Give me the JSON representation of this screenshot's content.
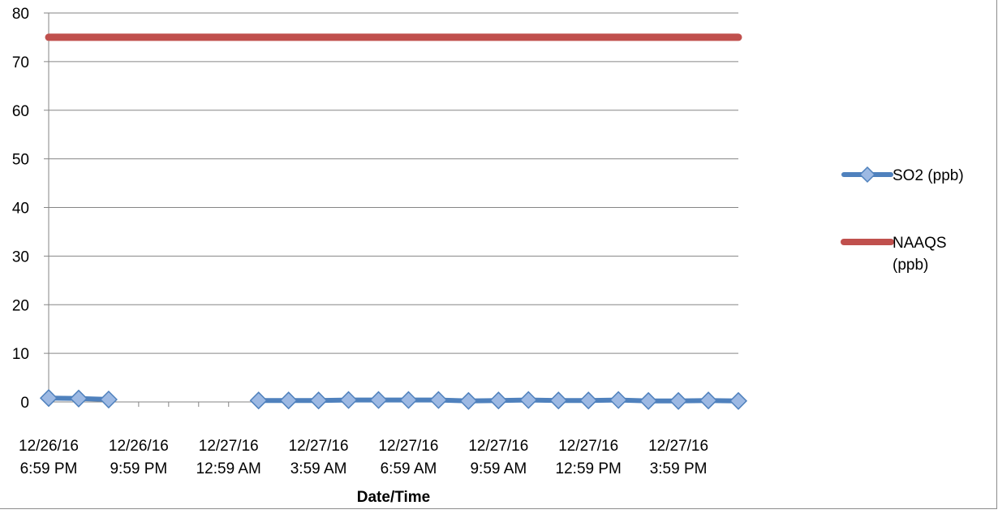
{
  "chart_data": {
    "type": "line",
    "xlabel": "Date/Time",
    "ylabel": "",
    "ylim": [
      0,
      80
    ],
    "yticks": [
      0,
      10,
      20,
      30,
      40,
      50,
      60,
      70,
      80
    ],
    "grid": true,
    "legend_position": "right",
    "x": [
      "12/26/16 6:59 PM",
      "12/26/16 7:59 PM",
      "12/26/16 8:59 PM",
      "12/26/16 9:59 PM",
      "12/26/16 10:59 PM",
      "12/26/16 11:59 PM",
      "12/27/16 12:59 AM",
      "12/27/16 1:59 AM",
      "12/27/16 2:59 AM",
      "12/27/16 3:59 AM",
      "12/27/16 4:59 AM",
      "12/27/16 5:59 AM",
      "12/27/16 6:59 AM",
      "12/27/16 7:59 AM",
      "12/27/16 8:59 AM",
      "12/27/16 9:59 AM",
      "12/27/16 10:59 AM",
      "12/27/16 11:59 AM",
      "12/27/16 12:59 PM",
      "12/27/16 1:59 PM",
      "12/27/16 2:59 PM",
      "12/27/16 3:59 PM",
      "12/27/16 4:59 PM",
      "12/27/16 5:59 PM"
    ],
    "x_tick_labels": [
      {
        "index": 0,
        "line1": "12/26/16",
        "line2": "6:59 PM"
      },
      {
        "index": 3,
        "line1": "12/26/16",
        "line2": "9:59 PM"
      },
      {
        "index": 6,
        "line1": "12/27/16",
        "line2": "12:59 AM"
      },
      {
        "index": 9,
        "line1": "12/27/16",
        "line2": "3:59 AM"
      },
      {
        "index": 12,
        "line1": "12/27/16",
        "line2": "6:59 AM"
      },
      {
        "index": 15,
        "line1": "12/27/16",
        "line2": "9:59 AM"
      },
      {
        "index": 18,
        "line1": "12/27/16",
        "line2": "12:59 PM"
      },
      {
        "index": 21,
        "line1": "12/27/16",
        "line2": "3:59 PM"
      }
    ],
    "series": [
      {
        "name": "SO2 (ppb)",
        "color": "#4f81bd",
        "marker": "diamond",
        "values": [
          0.8,
          0.7,
          0.5,
          null,
          null,
          null,
          null,
          0.3,
          0.3,
          0.3,
          0.4,
          0.4,
          0.4,
          0.4,
          0.2,
          0.3,
          0.4,
          0.3,
          0.3,
          0.4,
          0.2,
          0.2,
          0.3,
          0.2
        ]
      },
      {
        "name": "NAAQS (ppb)",
        "color": "#c0504d",
        "marker": "none",
        "values": [
          75,
          75,
          75,
          75,
          75,
          75,
          75,
          75,
          75,
          75,
          75,
          75,
          75,
          75,
          75,
          75,
          75,
          75,
          75,
          75,
          75,
          75,
          75,
          75
        ]
      }
    ],
    "legend": [
      {
        "lines": [
          "SO2 (ppb)"
        ]
      },
      {
        "lines": [
          "NAAQS",
          "(ppb)"
        ]
      }
    ]
  }
}
